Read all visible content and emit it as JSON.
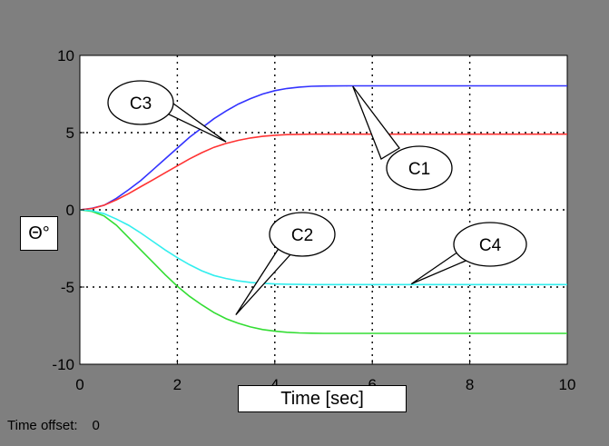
{
  "status_bar": {
    "time_offset_label": "Time offset:",
    "time_offset_value": "0"
  },
  "chart_data": {
    "type": "line",
    "xlabel": "Time [sec]",
    "ylabel": "Θ°",
    "xlim": [
      0,
      10
    ],
    "ylim": [
      -10,
      10
    ],
    "xticks": [
      0,
      2,
      4,
      6,
      8,
      10
    ],
    "yticks": [
      -10,
      -5,
      0,
      5,
      10
    ],
    "grid": true,
    "background_color": "#ffffff",
    "frame_color": "#7f7f7f",
    "x": [
      0,
      0.25,
      0.5,
      0.75,
      1.0,
      1.25,
      1.5,
      1.75,
      2.0,
      2.25,
      2.5,
      2.75,
      3.0,
      3.25,
      3.5,
      3.75,
      4.0,
      4.25,
      4.5,
      4.75,
      5.0,
      5.5,
      6.0,
      6.5,
      7.0,
      7.5,
      8.0,
      8.5,
      9.0,
      9.5,
      10.0
    ],
    "series": [
      {
        "name": "C1",
        "color": "#3333ff",
        "values": [
          0,
          0.1,
          0.3,
          0.75,
          1.3,
          1.9,
          2.6,
          3.3,
          4.0,
          4.7,
          5.3,
          5.9,
          6.4,
          6.85,
          7.2,
          7.5,
          7.72,
          7.86,
          7.95,
          8.0,
          8.02,
          8.03,
          8.03,
          8.03,
          8.03,
          8.03,
          8.03,
          8.03,
          8.03,
          8.03,
          8.03
        ]
      },
      {
        "name": "C2",
        "color": "#33dd33",
        "values": [
          0,
          -0.1,
          -0.4,
          -1.0,
          -1.8,
          -2.6,
          -3.4,
          -4.2,
          -4.95,
          -5.6,
          -6.15,
          -6.65,
          -7.05,
          -7.35,
          -7.58,
          -7.75,
          -7.86,
          -7.93,
          -7.97,
          -7.99,
          -8.0,
          -8.0,
          -8.0,
          -8.0,
          -8.0,
          -8.0,
          -8.0,
          -8.0,
          -8.0,
          -8.0,
          -8.0
        ]
      },
      {
        "name": "C3",
        "color": "#ff3333",
        "values": [
          0,
          0.08,
          0.3,
          0.65,
          1.05,
          1.5,
          1.95,
          2.4,
          2.85,
          3.3,
          3.7,
          4.05,
          4.3,
          4.5,
          4.65,
          4.76,
          4.83,
          4.87,
          4.89,
          4.9,
          4.9,
          4.9,
          4.9,
          4.9,
          4.9,
          4.9,
          4.9,
          4.9,
          4.9,
          4.9,
          4.9
        ]
      },
      {
        "name": "C4",
        "color": "#33eeee",
        "values": [
          0,
          -0.06,
          -0.25,
          -0.6,
          -1.0,
          -1.5,
          -2.05,
          -2.6,
          -3.1,
          -3.55,
          -3.95,
          -4.25,
          -4.45,
          -4.6,
          -4.7,
          -4.76,
          -4.8,
          -4.82,
          -4.83,
          -4.84,
          -4.84,
          -4.84,
          -4.84,
          -4.84,
          -4.84,
          -4.84,
          -4.84,
          -4.84,
          -4.84,
          -4.84,
          -4.84
        ]
      }
    ],
    "annotations": [
      {
        "label": "C1",
        "points_to": [
          5.6,
          8.0
        ]
      },
      {
        "label": "C2",
        "points_to": [
          3.2,
          -6.8
        ]
      },
      {
        "label": "C3",
        "points_to": [
          3.0,
          4.4
        ]
      },
      {
        "label": "C4",
        "points_to": [
          6.8,
          -4.8
        ]
      }
    ]
  }
}
